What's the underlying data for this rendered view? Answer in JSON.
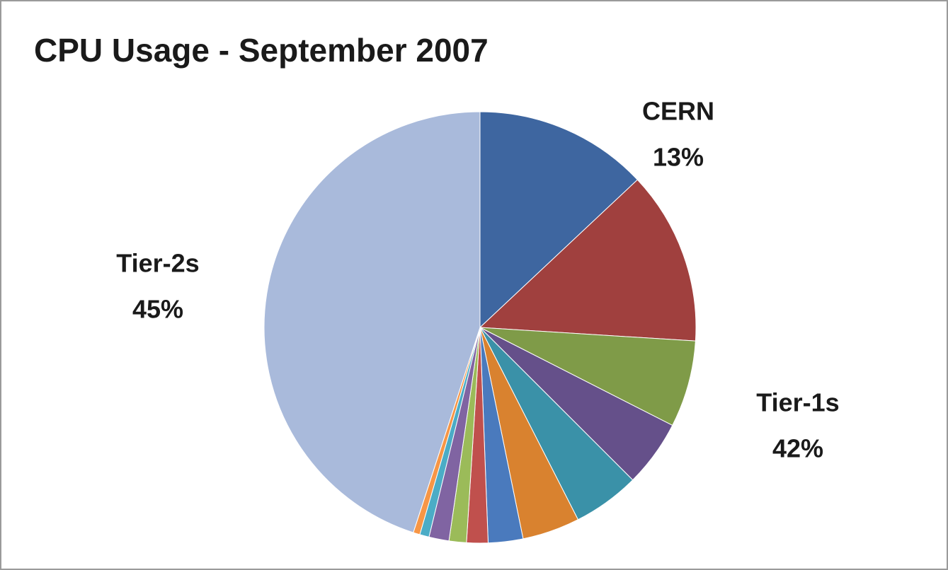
{
  "chart_data": {
    "type": "pie",
    "title": "CPU Usage - September 2007",
    "values": [
      13,
      13,
      6.5,
      5,
      5,
      4.3,
      2.6,
      1.6,
      1.3,
      1.5,
      0.7,
      0.5,
      45
    ],
    "colors": [
      "#3e66a0",
      "#a0403e",
      "#7f9b48",
      "#65508a",
      "#3a91a8",
      "#d9822f",
      "#4a7abd",
      "#c0504d",
      "#9bbb59",
      "#8064a2",
      "#4bacc6",
      "#f79646",
      "#a9badb"
    ],
    "groups": [
      {
        "name": "CERN",
        "value": 13,
        "value_label": "13%"
      },
      {
        "name": "Tier-1s",
        "value": 42,
        "value_label": "42%"
      },
      {
        "name": "Tier-2s",
        "value": 45,
        "value_label": "45%"
      }
    ]
  }
}
